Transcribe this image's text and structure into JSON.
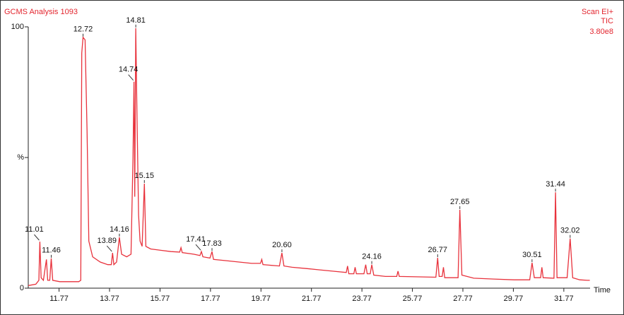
{
  "chart_data": {
    "type": "line",
    "title": "GCMS Analysis 1093",
    "scan_mode": "Scan EI+",
    "trace_name": "TIC",
    "intensity": "3.80e8",
    "x_label": "Time",
    "color": "#e8323c",
    "xlim": [
      10.55,
      32.81
    ],
    "ylim": [
      0,
      100
    ],
    "xticks": [
      11.77,
      13.77,
      15.77,
      17.77,
      19.77,
      21.77,
      23.77,
      25.77,
      27.77,
      29.77,
      31.77
    ],
    "yticks": [
      0,
      {
        "value": 50,
        "label": "%"
      },
      100
    ],
    "x": [
      10.55,
      10.85,
      10.97,
      11.01,
      11.06,
      11.15,
      11.27,
      11.32,
      11.4,
      11.46,
      11.52,
      11.8,
      12.3,
      12.55,
      12.63,
      12.67,
      12.72,
      12.8,
      12.88,
      12.95,
      13.1,
      13.4,
      13.7,
      13.84,
      13.89,
      13.94,
      14.05,
      14.16,
      14.25,
      14.45,
      14.62,
      14.7,
      14.74,
      14.77,
      14.81,
      14.86,
      14.92,
      14.98,
      15.06,
      15.15,
      15.21,
      15.4,
      15.8,
      16.2,
      16.55,
      16.6,
      16.65,
      17.1,
      17.35,
      17.41,
      17.47,
      17.75,
      17.83,
      17.89,
      18.4,
      18.9,
      19.4,
      19.75,
      19.8,
      19.85,
      20.5,
      20.6,
      20.68,
      21.0,
      21.6,
      22.1,
      22.6,
      23.15,
      23.2,
      23.25,
      23.45,
      23.5,
      23.55,
      23.85,
      23.92,
      23.98,
      24.1,
      24.16,
      24.24,
      24.7,
      25.15,
      25.2,
      25.25,
      26.7,
      26.77,
      26.83,
      26.95,
      27.0,
      27.05,
      27.58,
      27.65,
      27.73,
      28.2,
      29.0,
      29.8,
      30.42,
      30.51,
      30.6,
      30.85,
      30.9,
      30.95,
      31.38,
      31.44,
      31.5,
      31.9,
      32.02,
      32.12,
      32.4,
      32.7,
      32.8
    ],
    "values": [
      1,
      1.5,
      3,
      17.8,
      4,
      3,
      11,
      3,
      3,
      11.4,
      3,
      2.5,
      2.5,
      2.5,
      3,
      90,
      96,
      95,
      60,
      18,
      12,
      10,
      9,
      9,
      13.5,
      9,
      10,
      19.5,
      13,
      12,
      13,
      50,
      79,
      35,
      99.5,
      65,
      28,
      18,
      16,
      40,
      16,
      15,
      14.5,
      14,
      13.8,
      15.5,
      13.6,
      13,
      12.5,
      14,
      12,
      11.5,
      14,
      11,
      10.5,
      10,
      9.5,
      9.5,
      11,
      9,
      8.5,
      13.5,
      8.5,
      8,
      7.5,
      7,
      6.5,
      6,
      8.5,
      5.5,
      5.5,
      8,
      5.5,
      5.5,
      9,
      5.5,
      5.5,
      9,
      5,
      4.5,
      4.5,
      6.5,
      4.5,
      4.2,
      11.6,
      4.5,
      4.5,
      8,
      4,
      4,
      30,
      5,
      3.8,
      3.5,
      3.2,
      3.2,
      9.7,
      4,
      4,
      8,
      4,
      3.8,
      36.7,
      4,
      4,
      19,
      4,
      3.2,
      3,
      3
    ],
    "peaks": [
      {
        "x": 11.01,
        "label": "11.01",
        "y": 17.8
      },
      {
        "x": 11.46,
        "label": "11.46",
        "y": 11.4
      },
      {
        "x": 12.72,
        "label": "12.72",
        "y": 96
      },
      {
        "x": 13.89,
        "label": "13.89",
        "y": 13.5
      },
      {
        "x": 14.16,
        "label": "14.16",
        "y": 19.5
      },
      {
        "x": 14.74,
        "label": "14.74",
        "y": 79
      },
      {
        "x": 14.81,
        "label": "14.81",
        "y": 99.5
      },
      {
        "x": 15.15,
        "label": "15.15",
        "y": 40
      },
      {
        "x": 17.41,
        "label": "17.41",
        "y": 14
      },
      {
        "x": 17.83,
        "label": "17.83",
        "y": 14
      },
      {
        "x": 20.6,
        "label": "20.60",
        "y": 13.5
      },
      {
        "x": 24.16,
        "label": "24.16",
        "y": 9
      },
      {
        "x": 26.77,
        "label": "26.77",
        "y": 11.6
      },
      {
        "x": 27.65,
        "label": "27.65",
        "y": 30
      },
      {
        "x": 30.51,
        "label": "30.51",
        "y": 9.7
      },
      {
        "x": 31.44,
        "label": "31.44",
        "y": 36.7
      },
      {
        "x": 32.02,
        "label": "32.02",
        "y": 19
      }
    ]
  }
}
